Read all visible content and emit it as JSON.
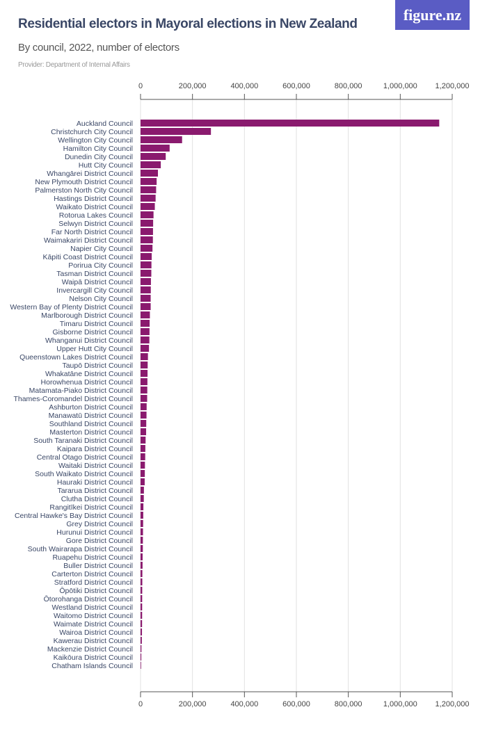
{
  "header": {
    "title": "Residential electors in Mayoral elections in New Zealand",
    "subtitle": "By council, 2022, number of electors",
    "provider": "Provider: Department of Internal Affairs",
    "logo": "figure.nz"
  },
  "colors": {
    "bar": "#8a1a6e",
    "logo_bg": "#5a5cc4",
    "title": "#3a4766"
  },
  "chart_data": {
    "type": "bar",
    "orientation": "horizontal",
    "title": "Residential electors in Mayoral elections in New Zealand",
    "subtitle": "By council, 2022, number of electors",
    "xlim": [
      0,
      1200000
    ],
    "xticks": [
      0,
      200000,
      400000,
      600000,
      800000,
      1000000,
      1200000
    ],
    "xtick_labels": [
      "0",
      "200,000",
      "400,000",
      "600,000",
      "800,000",
      "1,000,000",
      "1,200,000"
    ],
    "grid": true,
    "categories": [
      "Auckland Council",
      "Christchurch City Council",
      "Wellington City Council",
      "Hamilton City Council",
      "Dunedin City Council",
      "Hutt City Council",
      "Whangārei District Council",
      "New Plymouth District Council",
      "Palmerston North City Council",
      "Hastings District Council",
      "Waikato District Council",
      "Rotorua Lakes Council",
      "Selwyn District Council",
      "Far North District Council",
      "Waimakariri District Council",
      "Napier City Council",
      "Kāpiti Coast District Council",
      "Porirua City Council",
      "Tasman District Council",
      "Waipā District Council",
      "Invercargill City Council",
      "Nelson City Council",
      "Western Bay of Plenty District Council",
      "Marlborough District Council",
      "Timaru District Council",
      "Gisborne District Council",
      "Whanganui District Council",
      "Upper Hutt City Council",
      "Queenstown Lakes District Council",
      "Taupō District Council",
      "Whakatāne District Council",
      "Horowhenua District Council",
      "Matamata-Piako District Council",
      "Thames-Coromandel District Council",
      "Ashburton District Council",
      "Manawatū District Council",
      "Southland District Council",
      "Masterton District Council",
      "South Taranaki District Council",
      "Kaipara District Council",
      "Central Otago District Council",
      "Waitaki District Council",
      "South Waikato District Council",
      "Hauraki District Council",
      "Tararua District Council",
      "Clutha District Council",
      "Rangitīkei District Council",
      "Central Hawke's Bay District Council",
      "Grey District Council",
      "Hurunui District Council",
      "Gore District Council",
      "South Wairarapa District Council",
      "Ruapehu District Council",
      "Buller District Council",
      "Carterton District Council",
      "Stratford District Council",
      "Ōpōtiki District Council",
      "Ōtorohanga District Council",
      "Westland District Council",
      "Waitomo District Council",
      "Waimate District Council",
      "Wairoa District Council",
      "Kawerau District Council",
      "Mackenzie District Council",
      "Kaikōura District Council",
      "Chatham Islands Council"
    ],
    "values": [
      1150000,
      271000,
      160000,
      112000,
      97000,
      78000,
      67000,
      62000,
      60000,
      58000,
      55000,
      50000,
      48500,
      48000,
      47500,
      46000,
      43000,
      42000,
      41500,
      40000,
      39500,
      39000,
      39000,
      36000,
      35000,
      34500,
      34000,
      32500,
      28500,
      27500,
      27000,
      26500,
      26000,
      25500,
      23500,
      23000,
      22000,
      21500,
      19500,
      18500,
      18000,
      17000,
      16500,
      16000,
      13000,
      12500,
      11000,
      10500,
      10000,
      9500,
      9000,
      8800,
      8000,
      7800,
      7000,
      6800,
      6500,
      6300,
      6200,
      6100,
      5900,
      5500,
      5000,
      3500,
      3000,
      600
    ]
  }
}
